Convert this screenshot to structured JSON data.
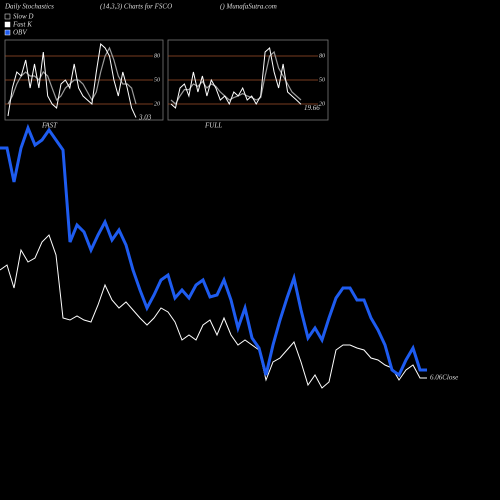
{
  "chart_data": [
    {
      "type": "line",
      "title": "Daily Stochastics",
      "subtitle": "(14,3,3) Charts for FSCO",
      "source": "() MunafaSutra.com",
      "annotation": "6.06Close",
      "ylim": [
        0,
        500
      ],
      "series": [
        {
          "name": "OBV",
          "color": "#1e5cf0",
          "values": [
            352,
            352,
            318,
            352,
            372,
            355,
            360,
            370,
            360,
            350,
            258,
            275,
            268,
            250,
            265,
            278,
            260,
            270,
            255,
            230,
            210,
            192,
            205,
            220,
            225,
            202,
            210,
            202,
            215,
            220,
            203,
            205,
            220,
            200,
            172,
            192,
            162,
            152,
            125,
            155,
            180,
            202,
            222,
            190,
            162,
            172,
            160,
            182,
            202,
            212,
            212,
            200,
            200,
            182,
            170,
            155,
            130,
            125,
            140,
            152,
            130,
            130
          ]
        },
        {
          "color": "#ffffff",
          "values": [
            230,
            235,
            212,
            250,
            238,
            242,
            258,
            265,
            245,
            182,
            180,
            184,
            180,
            178,
            195,
            215,
            200,
            192,
            198,
            190,
            182,
            175,
            182,
            192,
            188,
            178,
            160,
            165,
            160,
            175,
            180,
            165,
            182,
            165,
            155,
            160,
            155,
            150,
            120,
            138,
            142,
            150,
            158,
            138,
            115,
            125,
            112,
            118,
            150,
            155,
            155,
            152,
            150,
            142,
            140,
            135,
            132,
            120,
            130,
            135,
            122,
            122
          ]
        }
      ]
    },
    {
      "type": "line",
      "label": "FAST",
      "annotation": "3.03",
      "ylim": [
        0,
        100
      ],
      "yticks": [
        80,
        50,
        20
      ],
      "series": [
        {
          "name": "Slow D",
          "color": "#9a9a9a",
          "values": [
            20,
            30,
            45,
            55,
            60,
            55,
            55,
            50,
            60,
            55,
            40,
            25,
            30,
            40,
            45,
            50,
            50,
            45,
            35,
            25,
            35,
            60,
            80,
            90,
            75,
            55,
            45,
            45,
            40,
            20
          ]
        },
        {
          "name": "Fast K",
          "color": "#ffffff",
          "values": [
            5,
            40,
            60,
            55,
            75,
            40,
            70,
            40,
            85,
            30,
            20,
            15,
            45,
            50,
            40,
            70,
            40,
            30,
            25,
            20,
            60,
            95,
            90,
            80,
            50,
            30,
            60,
            40,
            15,
            3.03
          ]
        }
      ]
    },
    {
      "type": "line",
      "label": "FULL",
      "annotation": "19.66",
      "ylim": [
        0,
        100
      ],
      "yticks": [
        80,
        50,
        20
      ],
      "series": [
        {
          "color": "#9a9a9a",
          "values": [
            25,
            20,
            30,
            38,
            38,
            45,
            42,
            48,
            40,
            45,
            42,
            35,
            30,
            25,
            28,
            30,
            33,
            30,
            28,
            25,
            28,
            55,
            80,
            85,
            65,
            55,
            45,
            35,
            30,
            25
          ]
        },
        {
          "color": "#ffffff",
          "values": [
            20,
            15,
            40,
            45,
            30,
            60,
            35,
            55,
            30,
            50,
            40,
            25,
            30,
            20,
            35,
            30,
            40,
            25,
            30,
            20,
            30,
            85,
            90,
            60,
            40,
            70,
            35,
            30,
            25,
            19.66
          ]
        }
      ]
    }
  ]
}
